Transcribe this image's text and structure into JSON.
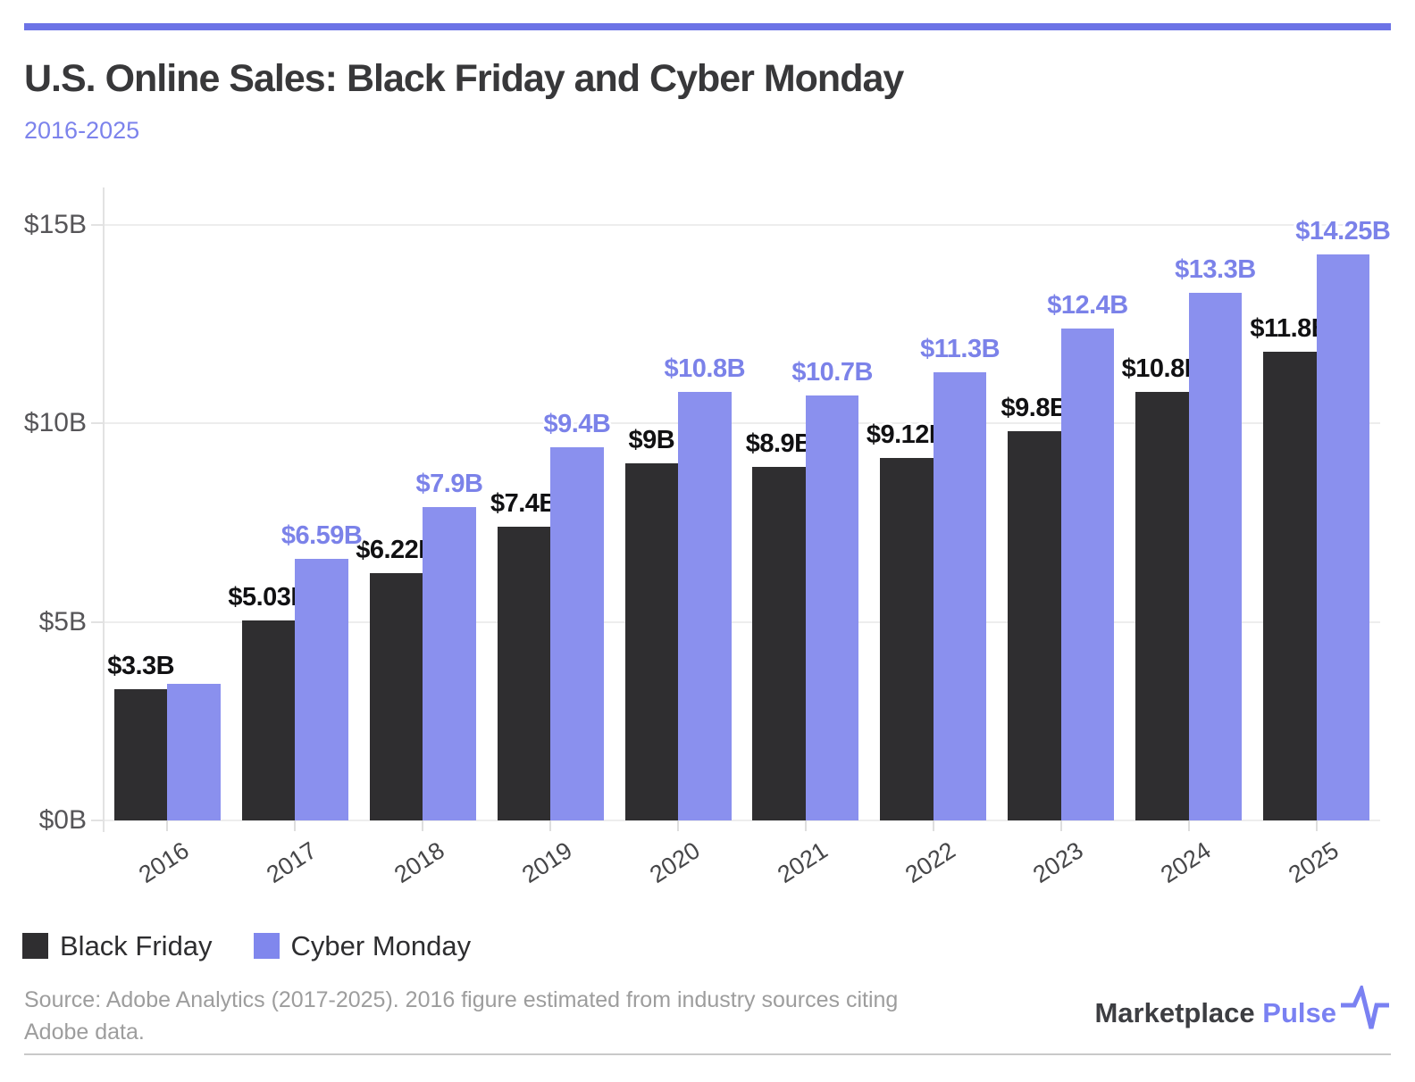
{
  "header": {
    "title": "U.S. Online Sales: Black Friday and Cyber Monday",
    "subtitle": "2016-2025"
  },
  "colors": {
    "accent_bar": "#6c73e6",
    "black_friday": "#2f2e30",
    "cyber_monday": "#8a90ee",
    "cyber_monday_label": "#7b82e9",
    "subtitle_text": "#7c83ec",
    "logo_purple": "#7a81f2"
  },
  "chart_data": {
    "type": "bar",
    "title": "U.S. Online Sales: Black Friday and Cyber Monday",
    "subtitle": "2016-2025",
    "categories": [
      "2016",
      "2017",
      "2018",
      "2019",
      "2020",
      "2021",
      "2022",
      "2023",
      "2024",
      "2025"
    ],
    "series": [
      {
        "name": "Black Friday",
        "color": "#2f2e30",
        "label_color": "#111113",
        "values": [
          3.3,
          5.03,
          6.22,
          7.4,
          9.0,
          8.9,
          9.12,
          9.8,
          10.8,
          11.8
        ],
        "labels": [
          "$3.3B",
          "$5.03B",
          "$6.22B",
          "$7.4B",
          "$9B",
          "$8.9B",
          "$9.12B",
          "$9.8B",
          "$10.8B",
          "$11.8B"
        ]
      },
      {
        "name": "Cyber Monday",
        "color": "#8a90ee",
        "label_color": "#7b82e9",
        "values": [
          3.45,
          6.59,
          7.9,
          9.4,
          10.8,
          10.7,
          11.3,
          12.4,
          13.3,
          14.25
        ],
        "labels": [
          null,
          "$6.59B",
          "$7.9B",
          "$9.4B",
          "$10.8B",
          "$10.7B",
          "$11.3B",
          "$12.4B",
          "$13.3B",
          "$14.25B"
        ]
      }
    ],
    "ylim": [
      0,
      15
    ],
    "y_ticks": [
      {
        "value": 0,
        "label": "$0B"
      },
      {
        "value": 5,
        "label": "$5B"
      },
      {
        "value": 10,
        "label": "$10B"
      },
      {
        "value": 15,
        "label": "$15B"
      }
    ],
    "grid": true,
    "legend_position": "bottom-left"
  },
  "legend": {
    "items": [
      {
        "label": "Black Friday",
        "color": "#2f2e30"
      },
      {
        "label": "Cyber Monday",
        "color": "#8087ed"
      }
    ]
  },
  "footer": {
    "source_lines": [
      "Source: Adobe Analytics (2017-2025). 2016 figure estimated from industry sources citing",
      "Adobe data."
    ],
    "logo_text_dark": "Marketplace ",
    "logo_text_purple": "Pulse"
  }
}
